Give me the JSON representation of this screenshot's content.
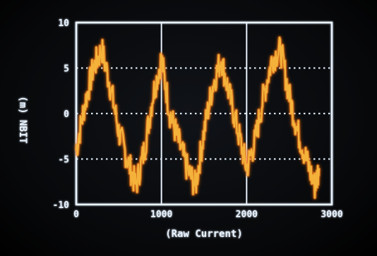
{
  "chart_data": {
    "type": "line",
    "title": "",
    "xlabel": "(Raw Current)",
    "ylabel": "(m) NBIT",
    "xlim": [
      0,
      3000
    ],
    "ylim": [
      -10,
      10
    ],
    "x_ticks": [
      "0",
      "1000",
      "2000",
      "3000"
    ],
    "y_ticks": [
      "10",
      "5",
      "0",
      "-5",
      "-10"
    ],
    "grid": true,
    "colors": {
      "line": "#f4b23a",
      "glow": "#ff7a1a",
      "frame": "#e8f3ff",
      "grid": "#d8e4f0",
      "background": "#050505"
    },
    "series": [
      {
        "name": "",
        "x": [
          0,
          100,
          200,
          300,
          400,
          500,
          600,
          700,
          800,
          900,
          1000,
          1100,
          1200,
          1300,
          1400,
          1500,
          1600,
          1700,
          1800,
          1900,
          2000,
          2100,
          2200,
          2300,
          2400,
          2500,
          2600,
          2700,
          2800,
          2850
        ],
        "y": [
          -4,
          1,
          5,
          7,
          3,
          -2,
          -5,
          -8,
          -4,
          2,
          6,
          0,
          -3,
          -6,
          -8,
          -2,
          3,
          6,
          2,
          -2,
          -6,
          -3,
          2,
          6,
          7,
          2,
          -2,
          -5,
          -8,
          -6
        ]
      }
    ]
  }
}
